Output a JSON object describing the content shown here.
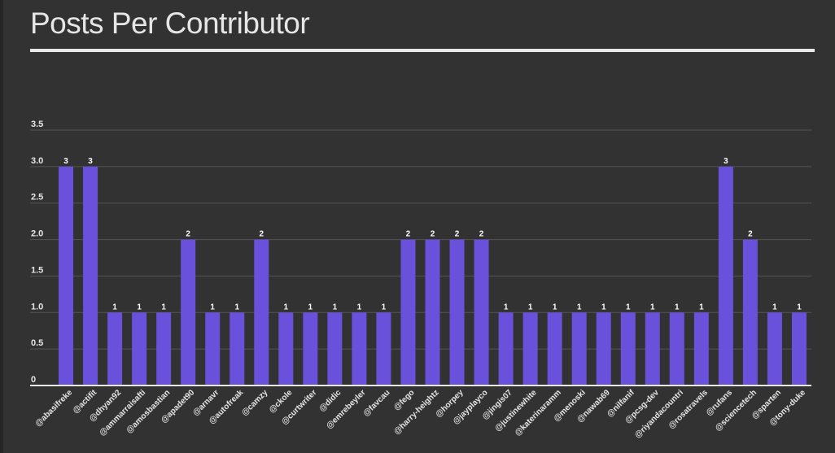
{
  "colors": {
    "bar": "#6a51dc",
    "grid": "#555555",
    "axis": "#e8e8e8",
    "text": "#e6e6e6"
  },
  "chart_data": {
    "type": "bar",
    "title": "Posts Per Contributor",
    "xlabel": "",
    "ylabel": "",
    "ylim": [
      0,
      3.5
    ],
    "yticks": [
      "0",
      "0.5",
      "1.0",
      "1.5",
      "2.0",
      "2.5",
      "3.0",
      "3.5"
    ],
    "grid": true,
    "legend": "none",
    "categories": [
      "@abasifreke",
      "@actifit",
      "@dhyan92",
      "@ammarraisafti",
      "@amosbastian",
      "@apadet90",
      "@arnavr",
      "@autofreak",
      "@camzy",
      "@ckole",
      "@curtwriter",
      "@didic",
      "@emrebeyler",
      "@favcau",
      "@fego",
      "@harry-heightz",
      "@horpey",
      "@jayplayco",
      "@jingis07",
      "@justinewhite",
      "@katerinaramm",
      "@menoski",
      "@nawab69",
      "@nilfanif",
      "@pcsg-dev",
      "@riyandacountri",
      "@rosatravels",
      "@rufans",
      "@sciencetech",
      "@sparten",
      "@tony-duke"
    ],
    "values": [
      3,
      3,
      1,
      1,
      1,
      2,
      1,
      1,
      2,
      1,
      1,
      1,
      1,
      1,
      2,
      2,
      2,
      2,
      1,
      1,
      1,
      1,
      1,
      1,
      1,
      1,
      1,
      3,
      2,
      1,
      1
    ]
  }
}
